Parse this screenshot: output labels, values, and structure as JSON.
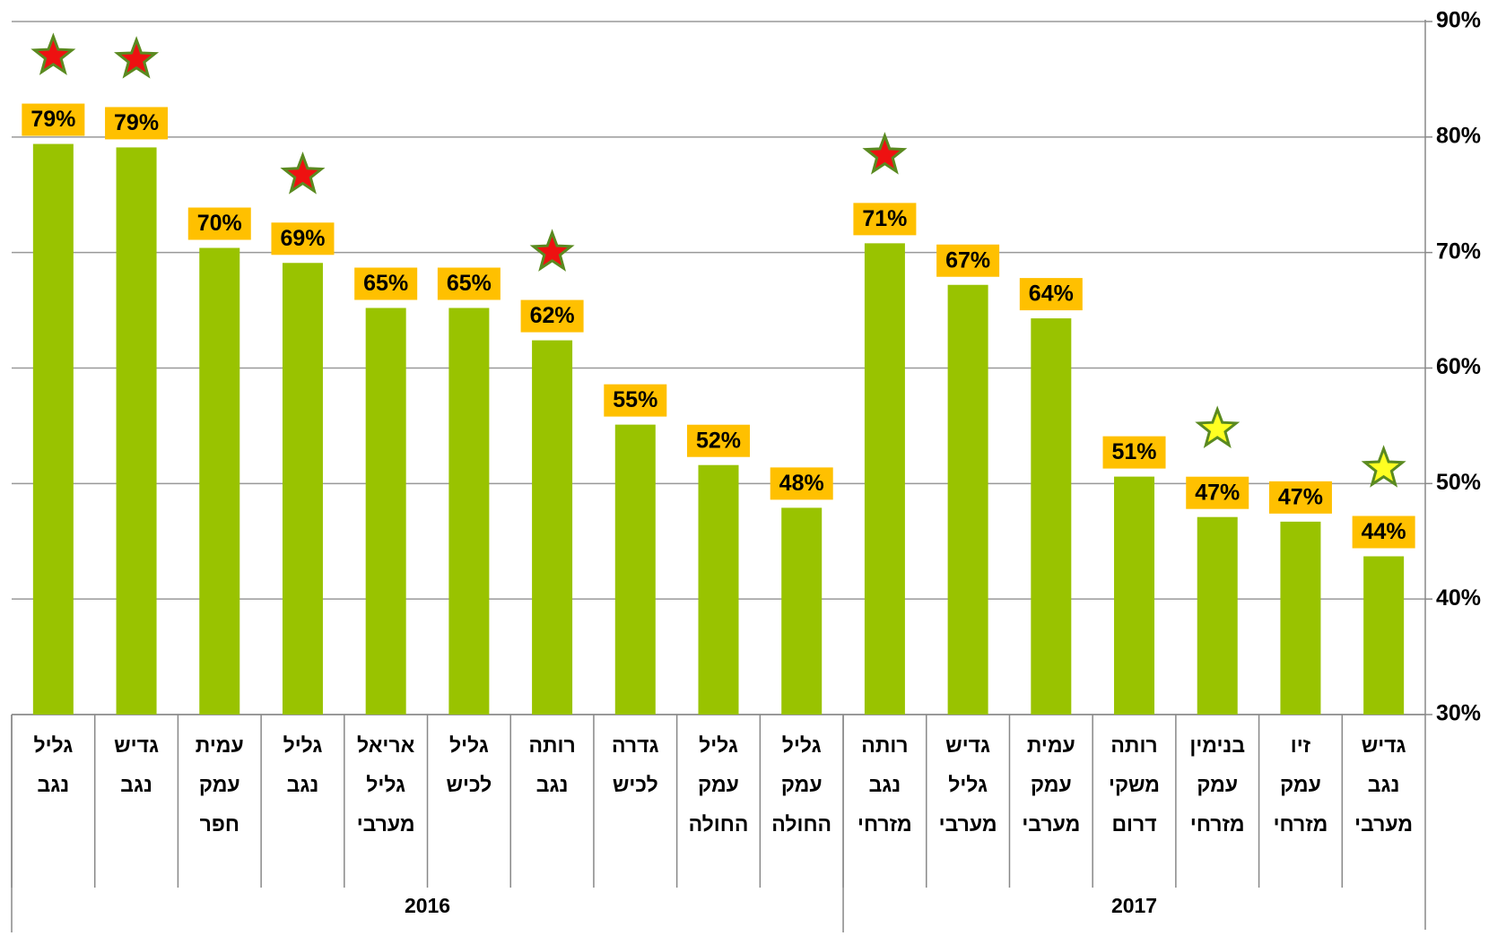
{
  "chart_data": {
    "type": "bar",
    "categories": [
      [
        "גליל",
        "נגב"
      ],
      [
        "גדיש",
        "נגב"
      ],
      [
        "עמית",
        "עמק",
        "חפר"
      ],
      [
        "גליל",
        "נגב"
      ],
      [
        "אריאל",
        "גליל",
        "מערבי"
      ],
      [
        "גליל",
        "לכיש"
      ],
      [
        "רותה",
        "נגב"
      ],
      [
        "גדרה",
        "לכיש"
      ],
      [
        "גליל",
        "עמק",
        "החולה"
      ],
      [
        "גליל",
        "עמק",
        "החולה"
      ],
      [
        "רותה",
        "נגב",
        "מזרחי"
      ],
      [
        "גדיש",
        "גליל",
        "מערבי"
      ],
      [
        "עמית",
        "עמק",
        "מערבי"
      ],
      [
        "רותה",
        "משקי",
        "דרום"
      ],
      [
        "בנימין",
        "עמק",
        "מזרחי"
      ],
      [
        "זיו",
        "עמק",
        "מזרחי"
      ],
      [
        "גדיש",
        "נגב",
        "מערבי"
      ]
    ],
    "groups": [
      {
        "label": "2016",
        "count": 10
      },
      {
        "label": "2017",
        "count": 7
      }
    ],
    "values": [
      79.4,
      79.1,
      70.4,
      69.1,
      65.2,
      65.2,
      62.4,
      55.1,
      51.6,
      47.9,
      70.8,
      67.2,
      64.3,
      50.6,
      47.1,
      46.7,
      43.7
    ],
    "value_labels": [
      "79%",
      "79%",
      "70%",
      "69%",
      "65%",
      "65%",
      "62%",
      "55%",
      "52%",
      "48%",
      "71%",
      "67%",
      "64%",
      "51%",
      "47%",
      "47%",
      "44%"
    ],
    "color": "#99c300",
    "label_box_color": "#ffc000",
    "stars": [
      {
        "color": "#ee1111",
        "indices": [
          0,
          1,
          3,
          6,
          10
        ]
      },
      {
        "color": "#ffff22",
        "indices": [
          14,
          16
        ]
      }
    ],
    "ylim": [
      30,
      90
    ],
    "yticks": [
      {
        "value": 30,
        "label": "30%"
      },
      {
        "value": 40,
        "label": "40%"
      },
      {
        "value": 50,
        "label": "50%"
      },
      {
        "value": 60,
        "label": "60%"
      },
      {
        "value": 70,
        "label": "70%"
      },
      {
        "value": 80,
        "label": "80%"
      },
      {
        "value": 90,
        "label": "90%"
      }
    ],
    "grid": true,
    "y_axis_side": "right"
  }
}
